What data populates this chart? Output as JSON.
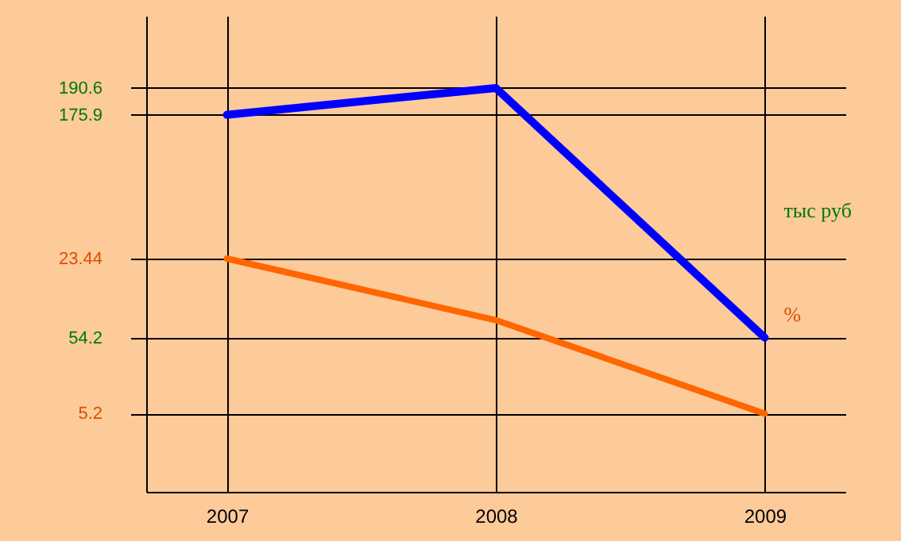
{
  "chart_data": {
    "type": "line",
    "categories": [
      "2007",
      "2008",
      "2009"
    ],
    "series": [
      {
        "name": "тыс руб",
        "color": "#0000ff",
        "values": [
          175.9,
          190.6,
          54.2
        ],
        "axis": "y"
      },
      {
        "name": "%",
        "color": "#ff6600",
        "values": [
          23.44,
          16.2,
          5.2
        ],
        "axis": "y2"
      }
    ],
    "ylim": [
      -30,
      230
    ],
    "yticks": [
      190.6,
      175.9,
      54.2
    ],
    "y2lim": [
      -4,
      52
    ],
    "y2ticks": [
      23.44,
      5.2
    ],
    "grid": true,
    "marker": "none",
    "line_style": "solid"
  }
}
